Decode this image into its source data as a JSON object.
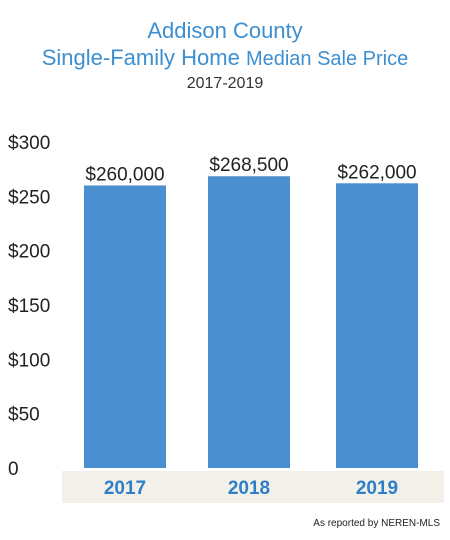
{
  "title": {
    "line1": "Addison County",
    "line2_main": "Single-Family Home",
    "line2_small": "Median Sale Price",
    "period": "2017-2019"
  },
  "footnote": "As reported by NEREN-MLS",
  "colors": {
    "bar": "#4a90d1",
    "title": "#3d8fd0",
    "axis_band": "#f2f0e9",
    "xtick": "#2f7fc8"
  },
  "chart_data": {
    "type": "bar",
    "categories": [
      "2017",
      "2018",
      "2019"
    ],
    "values": [
      260000,
      268500,
      262000
    ],
    "data_labels": [
      "$260,000",
      "$268,500",
      "$262,000"
    ],
    "ytick_labels": [
      "0",
      "$50",
      "$100",
      "$150",
      "$200",
      "$250",
      "$300"
    ],
    "ytick_values": [
      0,
      50000,
      100000,
      150000,
      200000,
      250000,
      300000
    ],
    "ylim": [
      0,
      300000
    ],
    "grid": false,
    "title": "Addison County Single-Family Home Median Sale Price",
    "subtitle": "2017-2019",
    "xlabel": "",
    "ylabel": ""
  }
}
